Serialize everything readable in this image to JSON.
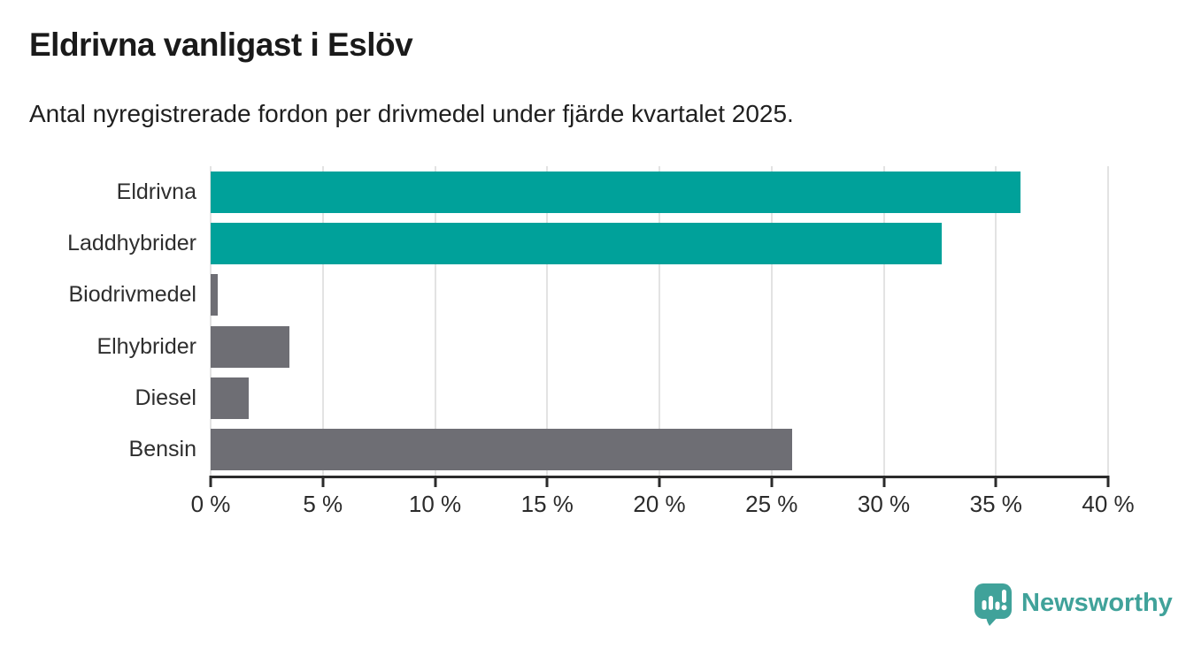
{
  "header": {
    "title": "Eldrivna vanligast i Eslöv",
    "subtitle": "Antal nyregistrerade fordon per drivmedel under fjärde kvartalet 2025."
  },
  "chart_data": {
    "type": "bar",
    "orientation": "horizontal",
    "title": "Eldrivna vanligast i Eslöv",
    "subtitle": "Antal nyregistrerade fordon per drivmedel under fjärde kvartalet 2025.",
    "categories": [
      "Eldrivna",
      "Laddhybrider",
      "Biodrivmedel",
      "Elhybrider",
      "Diesel",
      "Bensin"
    ],
    "values": [
      36.1,
      32.6,
      0.3,
      3.5,
      1.7,
      25.9
    ],
    "unit": "%",
    "bar_colors": [
      "#00a19a",
      "#00a19a",
      "#6e6e74",
      "#6e6e74",
      "#6e6e74",
      "#6e6e74"
    ],
    "xlabel": "",
    "ylabel": "",
    "xlim": [
      0,
      40
    ],
    "x_ticks": [
      0,
      5,
      10,
      15,
      20,
      25,
      30,
      35,
      40
    ],
    "x_tick_labels": [
      "0 %",
      "5 %",
      "10 %",
      "15 %",
      "20 %",
      "25 %",
      "30 %",
      "35 %",
      "40 %"
    ],
    "grid": "vertical",
    "legend": false
  },
  "colors": {
    "accent_teal": "#00a19a",
    "bar_gray": "#6e6e74",
    "gridline": "#e3e3e3",
    "axis": "#2b2b2b",
    "text": "#1a1a1a",
    "logo_teal": "#40a29a"
  },
  "branding": {
    "logo_text": "Newsworthy"
  }
}
